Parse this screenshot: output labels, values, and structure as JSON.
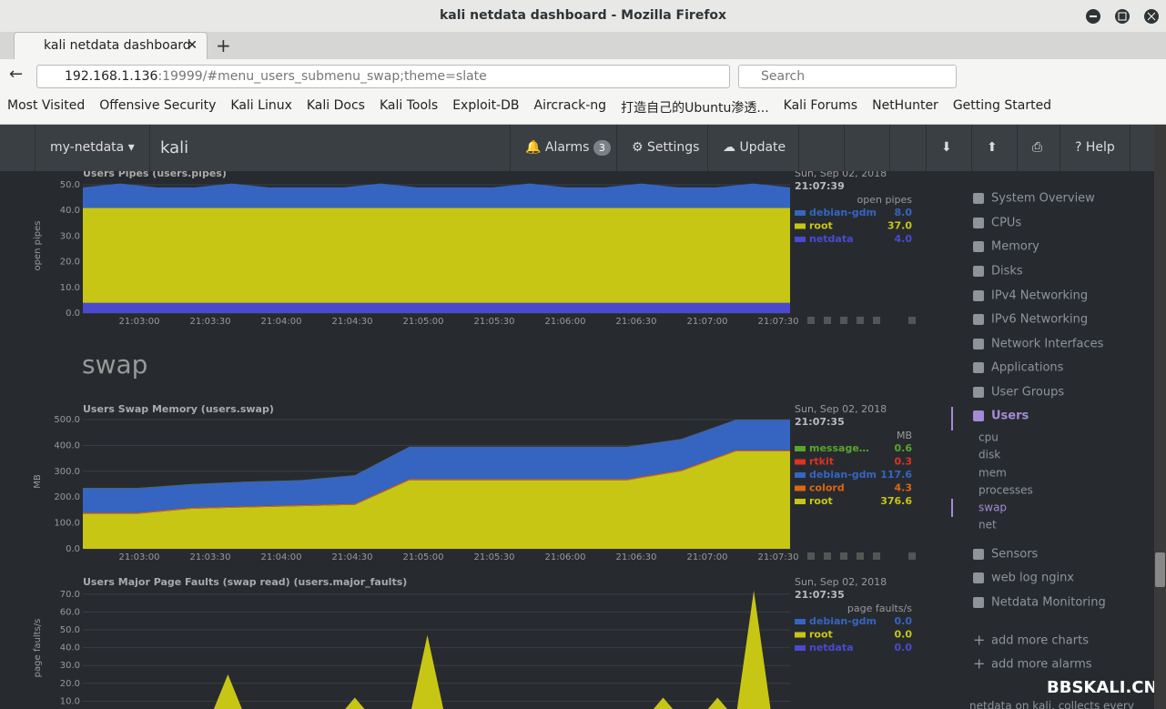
{
  "browser": {
    "window_title": "kali netdata dashboard - Mozilla Firefox",
    "tab_title": "kali netdata dashboard",
    "url_host": "192.168.1.136",
    "url_rest": ":19999/#menu_users_submenu_swap;theme=slate",
    "search": "Search",
    "bookmarks": [
      "Most Visited",
      "Offensive Security",
      "Kali Linux",
      "Kali Docs",
      "Kali Tools",
      "Exploit-DB",
      "Aircrack-ng",
      "打造自己的Ubuntu渗透...",
      "Kali Forums",
      "NetHunter",
      "Getting Started"
    ]
  },
  "netdata": {
    "brand": "my-netdata",
    "host": "kali",
    "alarms": "Alarms",
    "alarms_count": "3",
    "settings": "Settings",
    "update": "Update",
    "help": "Help"
  },
  "section_title": "swap",
  "sidebar": {
    "items": [
      "System Overview",
      "CPUs",
      "Memory",
      "Disks",
      "IPv4 Networking",
      "IPv6 Networking",
      "Network Interfaces",
      "Applications",
      "User Groups",
      "Users"
    ],
    "subitems": [
      "cpu",
      "disk",
      "mem",
      "processes",
      "swap",
      "net"
    ],
    "more": [
      "Sensors",
      "web log nginx",
      "Netdata Monitoring"
    ],
    "actions": [
      "add more charts",
      "add more alarms"
    ],
    "footer": "netdata on kali, collects every"
  },
  "watermark": "BBSKALI.CN",
  "chart_data": [
    {
      "type": "area",
      "title": "Users Pipes (users.pipes)",
      "date": "Sun, Sep 02, 2018",
      "time": "21:07:39",
      "units": "open pipes",
      "xticks": [
        "21:03:00",
        "21:03:30",
        "21:04:00",
        "21:04:30",
        "21:05:00",
        "21:05:30",
        "21:06:00",
        "21:06:30",
        "21:07:00",
        "21:07:30"
      ],
      "ylim": [
        0,
        52.5
      ],
      "yticks": [
        {
          "value": 0,
          "label": "0.0"
        },
        {
          "value": 10,
          "label": "10.0"
        },
        {
          "value": 20,
          "label": "20.0"
        },
        {
          "value": 30,
          "label": "30.0"
        },
        {
          "value": 40,
          "label": "40.0"
        },
        {
          "value": 50,
          "label": "50.0"
        }
      ],
      "series": [
        {
          "name": "debian-gdm",
          "color": "#3565c0",
          "legend_value": "8.0",
          "values": [
            8,
            9.5,
            8,
            8,
            9.5,
            8,
            8,
            8,
            9.5,
            8,
            8,
            8,
            9.5,
            8,
            8,
            9.5,
            8,
            8,
            9.5,
            8
          ]
        },
        {
          "name": "root",
          "color": "#c8c614",
          "legend_value": "37.0",
          "values": [
            37,
            37,
            37,
            37,
            37,
            37,
            37,
            37,
            37,
            37,
            37,
            37,
            37,
            37,
            37,
            37,
            37,
            37,
            37,
            37
          ]
        },
        {
          "name": "netdata",
          "color": "#4a4ad0",
          "legend_value": "4.0",
          "values": [
            4,
            4,
            4,
            4,
            4,
            4,
            4,
            4,
            4,
            4,
            4,
            4,
            4,
            4,
            4,
            4,
            4,
            4,
            4,
            4
          ]
        }
      ]
    },
    {
      "type": "area",
      "title": "Users Swap Memory (users.swap)",
      "date": "Sun, Sep 02, 2018",
      "time": "21:07:35",
      "units": "MB",
      "xticks": [
        "21:03:00",
        "21:03:30",
        "21:04:00",
        "21:04:30",
        "21:05:00",
        "21:05:30",
        "21:06:00",
        "21:06:30",
        "21:07:00",
        "21:07:30"
      ],
      "ylim": [
        0,
        521
      ],
      "yticks": [
        {
          "value": 0,
          "label": "0.0"
        },
        {
          "value": 100,
          "label": "100.0"
        },
        {
          "value": 200,
          "label": "200.0"
        },
        {
          "value": 300,
          "label": "300.0"
        },
        {
          "value": 400,
          "label": "400.0"
        },
        {
          "value": 500,
          "label": "500.0"
        }
      ],
      "series": [
        {
          "name": "message…",
          "color": "#5aa52a",
          "legend_value": "0.6",
          "values": [
            0.6,
            0.6,
            0.6,
            0.6,
            0.6,
            0.6,
            0.6,
            0.6,
            0.6,
            0.6,
            0.6,
            0.6,
            0.6,
            0.6
          ]
        },
        {
          "name": "rtkit",
          "color": "#dd3322",
          "legend_value": "0.3",
          "values": [
            0.3,
            0.3,
            0.3,
            0.3,
            0.3,
            0.3,
            0.3,
            0.3,
            0.3,
            0.3,
            0.3,
            0.3,
            0.3,
            0.3
          ]
        },
        {
          "name": "debian-gdm",
          "color": "#3565c0",
          "legend_value": "117.6",
          "values": [
            95,
            95,
            90,
            95,
            95,
            110,
            125,
            125,
            125,
            125,
            125,
            120,
            117.6,
            117.6
          ]
        },
        {
          "name": "colord",
          "color": "#dd6611",
          "legend_value": "4.3",
          "values": [
            4.3,
            4.3,
            4.3,
            4.3,
            4.3,
            4.3,
            4.3,
            4.3,
            4.3,
            4.3,
            4.3,
            4.3,
            4.3,
            4.3
          ]
        },
        {
          "name": "root",
          "color": "#c8c614",
          "legend_value": "376.6",
          "values": [
            135,
            135,
            155,
            160,
            165,
            170,
            265,
            265,
            265,
            265,
            265,
            300,
            376.6,
            376.6
          ]
        }
      ]
    },
    {
      "type": "area",
      "title": "Users Major Page Faults (swap read) (users.major_faults)",
      "date": "Sun, Sep 02, 2018",
      "time": "21:07:35",
      "units": "page faults/s",
      "xticks": [],
      "ylim": [
        0,
        74
      ],
      "yticks": [
        {
          "value": 10,
          "label": "10.0"
        },
        {
          "value": 20,
          "label": "20.0"
        },
        {
          "value": 30,
          "label": "30.0"
        },
        {
          "value": 40,
          "label": "40.0"
        },
        {
          "value": 50,
          "label": "50.0"
        },
        {
          "value": 60,
          "label": "60.0"
        },
        {
          "value": 70,
          "label": "70.0"
        }
      ],
      "series": [
        {
          "name": "debian-gdm",
          "color": "#3565c0",
          "legend_value": "0.0",
          "values": [
            0,
            0,
            0,
            0,
            0,
            0,
            0,
            0,
            0,
            0,
            0,
            0,
            0,
            0,
            0,
            0,
            0,
            0,
            0,
            0,
            0,
            0,
            0,
            0,
            0,
            0,
            0,
            0,
            0,
            0,
            0,
            0,
            0,
            0,
            0,
            0,
            0,
            0,
            0,
            0
          ]
        },
        {
          "name": "root",
          "color": "#c8c614",
          "legend_value": "0.0",
          "values": [
            0,
            0,
            0,
            0,
            0,
            0,
            0,
            0,
            25,
            0,
            0,
            0,
            0,
            0,
            0,
            12,
            0,
            0,
            0,
            47,
            0,
            0,
            0,
            0,
            0,
            0,
            0,
            0,
            0,
            0,
            0,
            0,
            12,
            0,
            0,
            12,
            0,
            72,
            0,
            0
          ]
        },
        {
          "name": "netdata",
          "color": "#4a4ad0",
          "legend_value": "0.0",
          "values": [
            0,
            0,
            0,
            0,
            0,
            0,
            0,
            0,
            0,
            0,
            0,
            0,
            0,
            0,
            0,
            0,
            0,
            0,
            0,
            0,
            0,
            0,
            0,
            0,
            0,
            0,
            0,
            0,
            0,
            0,
            0,
            0,
            0,
            0,
            0,
            0,
            0,
            0,
            0,
            0
          ]
        }
      ]
    }
  ]
}
